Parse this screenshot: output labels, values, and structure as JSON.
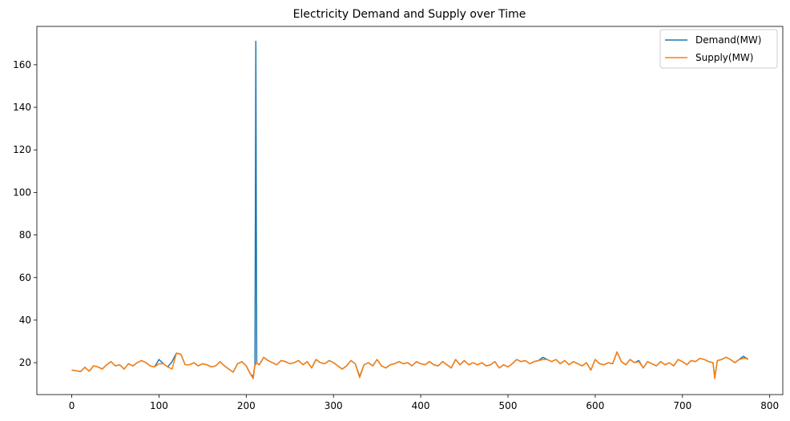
{
  "chart_data": {
    "type": "line",
    "title": "Electricity Demand and Supply over Time",
    "xlabel": "",
    "ylabel": "",
    "xlim": [
      -40,
      815
    ],
    "ylim": [
      5,
      178
    ],
    "x_ticks": [
      0,
      100,
      200,
      300,
      400,
      500,
      600,
      700,
      800
    ],
    "y_ticks": [
      20,
      40,
      60,
      80,
      100,
      120,
      140,
      160
    ],
    "grid": false,
    "legend": {
      "placement": "top-right",
      "entries": [
        "Demand(MW)",
        "Supply(MW)"
      ]
    },
    "series": [
      {
        "name": "Demand(MW)",
        "color": "#1f77b4",
        "points": [
          [
            0,
            16.5
          ],
          [
            5,
            16.2
          ],
          [
            10,
            15.8
          ],
          [
            15,
            17.8
          ],
          [
            20,
            16.0
          ],
          [
            25,
            18.5
          ],
          [
            30,
            18.0
          ],
          [
            35,
            17.0
          ],
          [
            40,
            19.0
          ],
          [
            45,
            20.5
          ],
          [
            50,
            18.5
          ],
          [
            55,
            19.0
          ],
          [
            60,
            17.0
          ],
          [
            65,
            19.5
          ],
          [
            70,
            18.5
          ],
          [
            75,
            20.0
          ],
          [
            80,
            21.0
          ],
          [
            85,
            20.0
          ],
          [
            90,
            18.5
          ],
          [
            95,
            18.0
          ],
          [
            100,
            21.5
          ],
          [
            105,
            19.5
          ],
          [
            110,
            18.0
          ],
          [
            115,
            20.5
          ],
          [
            120,
            24.5
          ],
          [
            125,
            24.0
          ],
          [
            130,
            19.0
          ],
          [
            135,
            19.0
          ],
          [
            140,
            20.0
          ],
          [
            145,
            18.5
          ],
          [
            150,
            19.5
          ],
          [
            155,
            19.0
          ],
          [
            160,
            18.0
          ],
          [
            165,
            18.5
          ],
          [
            170,
            20.5
          ],
          [
            175,
            18.5
          ],
          [
            180,
            17.0
          ],
          [
            185,
            15.5
          ],
          [
            190,
            19.5
          ],
          [
            195,
            20.5
          ],
          [
            200,
            18.5
          ],
          [
            205,
            14.5
          ],
          [
            208,
            13.5
          ],
          [
            210,
            19.0
          ],
          [
            211,
            171.0
          ],
          [
            212,
            20.0
          ],
          [
            215,
            19.0
          ],
          [
            220,
            22.5
          ],
          [
            225,
            21.0
          ],
          [
            230,
            20.0
          ],
          [
            235,
            19.0
          ],
          [
            240,
            21.0
          ],
          [
            245,
            20.5
          ],
          [
            250,
            19.5
          ],
          [
            255,
            20.0
          ],
          [
            260,
            21.0
          ],
          [
            265,
            19.0
          ],
          [
            270,
            20.5
          ],
          [
            275,
            17.5
          ],
          [
            280,
            21.5
          ],
          [
            285,
            20.0
          ],
          [
            290,
            19.5
          ],
          [
            295,
            21.0
          ],
          [
            300,
            20.0
          ],
          [
            305,
            18.5
          ],
          [
            310,
            17.0
          ],
          [
            315,
            18.5
          ],
          [
            320,
            21.0
          ],
          [
            325,
            19.5
          ],
          [
            330,
            13.5
          ],
          [
            335,
            19.0
          ],
          [
            340,
            20.0
          ],
          [
            345,
            18.5
          ],
          [
            350,
            21.5
          ],
          [
            355,
            18.5
          ],
          [
            360,
            17.5
          ],
          [
            365,
            19.0
          ],
          [
            370,
            19.5
          ],
          [
            375,
            20.5
          ],
          [
            380,
            19.5
          ],
          [
            385,
            20.0
          ],
          [
            390,
            18.5
          ],
          [
            395,
            20.5
          ],
          [
            400,
            19.5
          ],
          [
            405,
            19.0
          ],
          [
            410,
            20.5
          ],
          [
            415,
            19.0
          ],
          [
            420,
            18.5
          ],
          [
            425,
            20.5
          ],
          [
            430,
            19.0
          ],
          [
            435,
            17.5
          ],
          [
            440,
            21.5
          ],
          [
            445,
            19.0
          ],
          [
            450,
            21.0
          ],
          [
            455,
            19.0
          ],
          [
            460,
            20.0
          ],
          [
            465,
            19.0
          ],
          [
            470,
            20.0
          ],
          [
            475,
            18.5
          ],
          [
            480,
            19.0
          ],
          [
            485,
            20.5
          ],
          [
            490,
            17.5
          ],
          [
            495,
            19.0
          ],
          [
            500,
            18.0
          ],
          [
            505,
            19.5
          ],
          [
            510,
            21.5
          ],
          [
            515,
            20.5
          ],
          [
            520,
            21.0
          ],
          [
            525,
            19.5
          ],
          [
            530,
            20.5
          ],
          [
            535,
            21.0
          ],
          [
            540,
            22.5
          ],
          [
            545,
            21.5
          ],
          [
            550,
            20.5
          ],
          [
            555,
            21.5
          ],
          [
            560,
            19.5
          ],
          [
            565,
            21.0
          ],
          [
            570,
            19.0
          ],
          [
            575,
            20.5
          ],
          [
            580,
            19.5
          ],
          [
            585,
            18.5
          ],
          [
            590,
            20.0
          ],
          [
            595,
            16.5
          ],
          [
            600,
            21.5
          ],
          [
            605,
            19.5
          ],
          [
            610,
            19.0
          ],
          [
            615,
            20.0
          ],
          [
            620,
            19.5
          ],
          [
            625,
            25.0
          ],
          [
            630,
            20.5
          ],
          [
            635,
            19.0
          ],
          [
            640,
            21.5
          ],
          [
            645,
            20.0
          ],
          [
            650,
            21.0
          ],
          [
            655,
            17.5
          ],
          [
            660,
            20.5
          ],
          [
            665,
            19.5
          ],
          [
            670,
            18.5
          ],
          [
            675,
            20.5
          ],
          [
            680,
            19.0
          ],
          [
            685,
            20.0
          ],
          [
            690,
            18.5
          ],
          [
            695,
            21.5
          ],
          [
            700,
            20.5
          ],
          [
            705,
            19.0
          ],
          [
            710,
            21.0
          ],
          [
            715,
            20.5
          ],
          [
            720,
            22.0
          ],
          [
            725,
            21.5
          ],
          [
            730,
            20.5
          ],
          [
            735,
            20.0
          ],
          [
            737,
            13.0
          ],
          [
            740,
            21.0
          ],
          [
            745,
            21.5
          ],
          [
            750,
            22.5
          ],
          [
            755,
            21.5
          ],
          [
            760,
            20.0
          ],
          [
            765,
            21.5
          ],
          [
            770,
            23.0
          ],
          [
            775,
            21.5
          ]
        ]
      },
      {
        "name": "Supply(MW)",
        "color": "#ff7f0e",
        "points": [
          [
            0,
            16.5
          ],
          [
            5,
            16.2
          ],
          [
            10,
            15.8
          ],
          [
            15,
            17.8
          ],
          [
            20,
            16.0
          ],
          [
            25,
            18.5
          ],
          [
            30,
            18.0
          ],
          [
            35,
            17.0
          ],
          [
            40,
            19.0
          ],
          [
            45,
            20.5
          ],
          [
            50,
            18.5
          ],
          [
            55,
            19.0
          ],
          [
            60,
            17.0
          ],
          [
            65,
            19.5
          ],
          [
            70,
            18.5
          ],
          [
            75,
            20.0
          ],
          [
            80,
            21.0
          ],
          [
            85,
            20.0
          ],
          [
            90,
            18.5
          ],
          [
            95,
            18.0
          ],
          [
            100,
            19.5
          ],
          [
            105,
            19.5
          ],
          [
            110,
            18.0
          ],
          [
            115,
            17.0
          ],
          [
            120,
            24.5
          ],
          [
            125,
            24.0
          ],
          [
            130,
            19.0
          ],
          [
            135,
            19.0
          ],
          [
            140,
            20.0
          ],
          [
            145,
            18.5
          ],
          [
            150,
            19.5
          ],
          [
            155,
            19.0
          ],
          [
            160,
            18.0
          ],
          [
            165,
            18.5
          ],
          [
            170,
            20.5
          ],
          [
            175,
            18.5
          ],
          [
            180,
            17.0
          ],
          [
            185,
            15.5
          ],
          [
            190,
            19.5
          ],
          [
            195,
            20.5
          ],
          [
            200,
            18.5
          ],
          [
            205,
            14.5
          ],
          [
            208,
            12.5
          ],
          [
            210,
            19.0
          ],
          [
            211,
            19.0
          ],
          [
            212,
            20.0
          ],
          [
            215,
            19.0
          ],
          [
            220,
            22.5
          ],
          [
            225,
            21.0
          ],
          [
            230,
            20.0
          ],
          [
            235,
            19.0
          ],
          [
            240,
            21.0
          ],
          [
            245,
            20.5
          ],
          [
            250,
            19.5
          ],
          [
            255,
            20.0
          ],
          [
            260,
            21.0
          ],
          [
            265,
            19.0
          ],
          [
            270,
            20.5
          ],
          [
            275,
            17.5
          ],
          [
            280,
            21.5
          ],
          [
            285,
            20.0
          ],
          [
            290,
            19.5
          ],
          [
            295,
            21.0
          ],
          [
            300,
            20.0
          ],
          [
            305,
            18.5
          ],
          [
            310,
            17.0
          ],
          [
            315,
            18.5
          ],
          [
            320,
            21.0
          ],
          [
            325,
            19.5
          ],
          [
            330,
            13.0
          ],
          [
            335,
            19.0
          ],
          [
            340,
            20.0
          ],
          [
            345,
            18.5
          ],
          [
            350,
            21.5
          ],
          [
            355,
            18.5
          ],
          [
            360,
            17.5
          ],
          [
            365,
            19.0
          ],
          [
            370,
            19.5
          ],
          [
            375,
            20.5
          ],
          [
            380,
            19.5
          ],
          [
            385,
            20.0
          ],
          [
            390,
            18.5
          ],
          [
            395,
            20.5
          ],
          [
            400,
            19.5
          ],
          [
            405,
            19.0
          ],
          [
            410,
            20.5
          ],
          [
            415,
            19.0
          ],
          [
            420,
            18.5
          ],
          [
            425,
            20.5
          ],
          [
            430,
            19.0
          ],
          [
            435,
            17.5
          ],
          [
            440,
            21.5
          ],
          [
            445,
            19.0
          ],
          [
            450,
            21.0
          ],
          [
            455,
            19.0
          ],
          [
            460,
            20.0
          ],
          [
            465,
            19.0
          ],
          [
            470,
            20.0
          ],
          [
            475,
            18.5
          ],
          [
            480,
            19.0
          ],
          [
            485,
            20.5
          ],
          [
            490,
            17.5
          ],
          [
            495,
            19.0
          ],
          [
            500,
            18.0
          ],
          [
            505,
            19.5
          ],
          [
            510,
            21.5
          ],
          [
            515,
            20.5
          ],
          [
            520,
            21.0
          ],
          [
            525,
            19.5
          ],
          [
            530,
            20.5
          ],
          [
            535,
            21.0
          ],
          [
            540,
            21.5
          ],
          [
            545,
            21.5
          ],
          [
            550,
            20.5
          ],
          [
            555,
            21.5
          ],
          [
            560,
            19.5
          ],
          [
            565,
            21.0
          ],
          [
            570,
            19.0
          ],
          [
            575,
            20.5
          ],
          [
            580,
            19.5
          ],
          [
            585,
            18.5
          ],
          [
            590,
            20.0
          ],
          [
            595,
            16.5
          ],
          [
            600,
            21.5
          ],
          [
            605,
            19.5
          ],
          [
            610,
            19.0
          ],
          [
            615,
            20.0
          ],
          [
            620,
            19.5
          ],
          [
            625,
            25.0
          ],
          [
            630,
            20.5
          ],
          [
            635,
            19.0
          ],
          [
            640,
            21.5
          ],
          [
            645,
            20.0
          ],
          [
            650,
            20.5
          ],
          [
            655,
            17.5
          ],
          [
            660,
            20.5
          ],
          [
            665,
            19.5
          ],
          [
            670,
            18.5
          ],
          [
            675,
            20.5
          ],
          [
            680,
            19.0
          ],
          [
            685,
            20.0
          ],
          [
            690,
            18.5
          ],
          [
            695,
            21.5
          ],
          [
            700,
            20.5
          ],
          [
            705,
            19.0
          ],
          [
            710,
            21.0
          ],
          [
            715,
            20.5
          ],
          [
            720,
            22.0
          ],
          [
            725,
            21.5
          ],
          [
            730,
            20.5
          ],
          [
            735,
            20.0
          ],
          [
            737,
            12.5
          ],
          [
            740,
            21.0
          ],
          [
            745,
            21.5
          ],
          [
            750,
            22.5
          ],
          [
            755,
            21.5
          ],
          [
            760,
            20.0
          ],
          [
            765,
            21.5
          ],
          [
            770,
            22.0
          ],
          [
            775,
            22.0
          ]
        ]
      }
    ]
  }
}
